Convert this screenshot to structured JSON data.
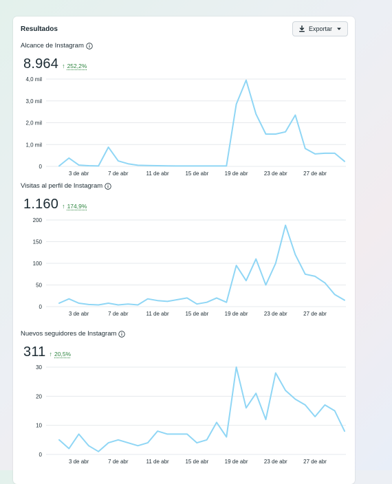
{
  "card": {
    "title": "Resultados",
    "export_label": "Exportar"
  },
  "colors": {
    "line": "#8fd6f5",
    "grid": "#e6e9ec",
    "positive": "#2e8540"
  },
  "sections": [
    {
      "title": "Alcance de Instagram",
      "value": "8.964",
      "arrow": "↑",
      "change": "252,2%"
    },
    {
      "title": "Visitas al perfil de Instagram",
      "value": "1.160",
      "arrow": "↑",
      "change": "174,9%"
    },
    {
      "title": "Nuevos seguidores de Instagram",
      "value": "311",
      "arrow": "↑",
      "change": "20,5%"
    }
  ],
  "chart_data": [
    {
      "type": "line",
      "x_tick_labels": [
        "3 de abr",
        "7 de abr",
        "11 de abr",
        "15 de abr",
        "19 de abr",
        "23 de abr",
        "27 de abr"
      ],
      "x_tick_indices": [
        2,
        6,
        10,
        14,
        18,
        22,
        26
      ],
      "y_ticks": [
        0,
        1000,
        2000,
        3000,
        4000
      ],
      "y_tick_labels": [
        "0",
        "1,0 mil",
        "2,0 mil",
        "3,0 mil",
        "4,0 mil"
      ],
      "ylim": [
        0,
        4000
      ],
      "grid": true,
      "series": [
        {
          "values": [
            20,
            380,
            60,
            30,
            20,
            880,
            250,
            120,
            50,
            40,
            30,
            25,
            20,
            20,
            20,
            20,
            20,
            20,
            2850,
            3950,
            2400,
            1480,
            1480,
            1580,
            2350,
            820,
            570,
            600,
            600,
            230
          ]
        }
      ]
    },
    {
      "type": "line",
      "x_tick_labels": [
        "3 de abr",
        "7 de abr",
        "11 de abr",
        "15 de abr",
        "19 de abr",
        "23 de abr",
        "27 de abr"
      ],
      "x_tick_indices": [
        2,
        6,
        10,
        14,
        18,
        22,
        26
      ],
      "y_ticks": [
        0,
        50,
        100,
        150,
        200
      ],
      "y_tick_labels": [
        "0",
        "50",
        "100",
        "150",
        "200"
      ],
      "ylim": [
        0,
        200
      ],
      "grid": true,
      "series": [
        {
          "values": [
            8,
            18,
            8,
            5,
            4,
            8,
            4,
            6,
            4,
            18,
            14,
            12,
            16,
            20,
            6,
            10,
            20,
            10,
            95,
            60,
            110,
            50,
            100,
            188,
            120,
            75,
            70,
            55,
            28,
            15
          ]
        }
      ]
    },
    {
      "type": "line",
      "x_tick_labels": [
        "3 de abr",
        "7 de abr",
        "11 de abr",
        "15 de abr",
        "19 de abr",
        "23 de abr",
        "27 de abr"
      ],
      "x_tick_indices": [
        2,
        6,
        10,
        14,
        18,
        22,
        26
      ],
      "y_ticks": [
        0,
        10,
        20,
        30
      ],
      "y_tick_labels": [
        "0",
        "10",
        "20",
        "30"
      ],
      "ylim": [
        0,
        30
      ],
      "grid": true,
      "series": [
        {
          "values": [
            5,
            2,
            7,
            3,
            1,
            4,
            5,
            4,
            3,
            4,
            8,
            7,
            7,
            7,
            4,
            5,
            11,
            6,
            30,
            16,
            21,
            12,
            28,
            22,
            19,
            17,
            13,
            17,
            15,
            8
          ]
        }
      ]
    }
  ]
}
